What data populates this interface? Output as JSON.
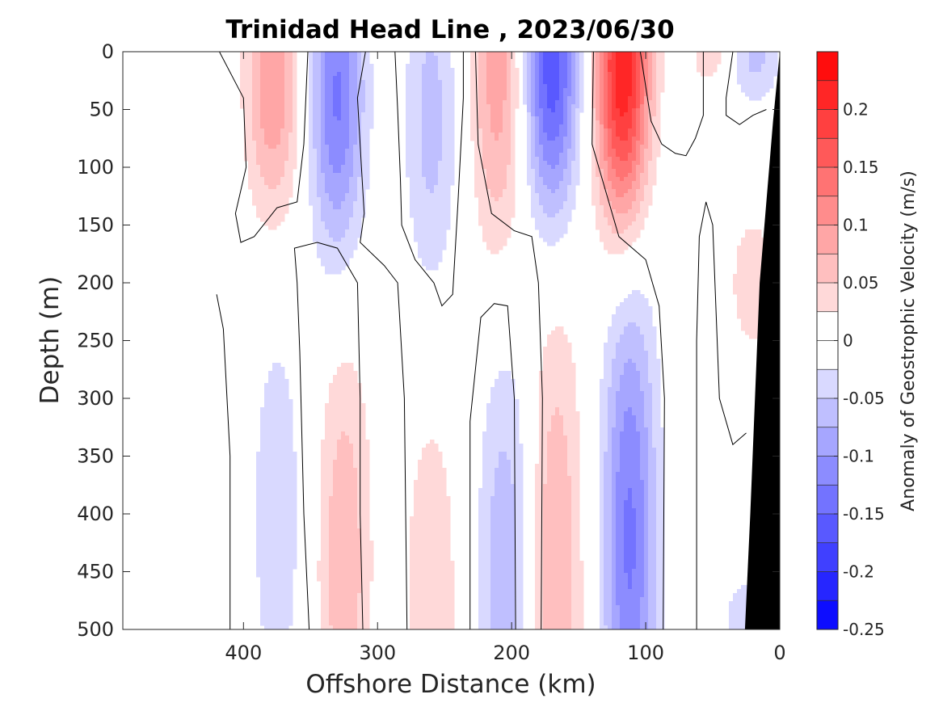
{
  "chart_data": {
    "type": "heatmap",
    "title": "Trinidad Head Line , 2023/06/30",
    "xlabel": "Offshore Distance (km)",
    "ylabel": "Depth (m)",
    "xlim": [
      490,
      0
    ],
    "ylim": [
      0,
      500
    ],
    "x_direction": "reversed",
    "y_direction": "down",
    "xticks": [
      400,
      300,
      200,
      100,
      0
    ],
    "yticks": [
      0,
      50,
      100,
      150,
      200,
      250,
      300,
      350,
      400,
      450,
      500
    ],
    "colorbar": {
      "label": "Anomaly of Geostrophic Velocity (m/s)",
      "range": [
        -0.25,
        0.25
      ],
      "levels": [
        -0.25,
        -0.225,
        -0.2,
        -0.175,
        -0.15,
        -0.125,
        -0.1,
        -0.075,
        -0.05,
        -0.025,
        0,
        0.025,
        0.05,
        0.075,
        0.1,
        0.125,
        0.15,
        0.175,
        0.2,
        0.225,
        0.25
      ],
      "ticks": [
        -0.25,
        -0.2,
        -0.15,
        -0.1,
        -0.05,
        0,
        0.05,
        0.1,
        0.15,
        0.2
      ],
      "tick_labels": [
        "-0.25",
        "-0.2",
        "-0.15",
        "-0.1",
        "-0.05",
        "0",
        "0.05",
        "0.1",
        "0.15",
        "0.2"
      ],
      "negative_color": "#0000ff",
      "positive_color": "#ff0000",
      "neutral_color": "#ffffff"
    },
    "features": [
      {
        "x": 378,
        "depth": 25,
        "peak": 0.1,
        "depth_extent": 120
      },
      {
        "x": 330,
        "depth": 40,
        "peak": -0.13,
        "depth_extent": 140
      },
      {
        "x": 260,
        "depth": 60,
        "peak": -0.06,
        "depth_extent": 150
      },
      {
        "x": 210,
        "depth": 20,
        "peak": 0.09,
        "depth_extent": 160
      },
      {
        "x": 170,
        "depth": 15,
        "peak": -0.17,
        "depth_extent": 130
      },
      {
        "x": 117,
        "depth": 15,
        "peak": 0.23,
        "depth_extent": 140
      },
      {
        "x": 50,
        "depth": 5,
        "peak": 0.04,
        "depth_extent": 30
      },
      {
        "x": 20,
        "depth": 5,
        "peak": -0.06,
        "depth_extent": 40
      },
      {
        "x": 20,
        "depth": 200,
        "peak": 0.04,
        "depth_extent": 70
      },
      {
        "x": 375,
        "depth": 400,
        "peak": -0.045,
        "depth_extent": 180
      },
      {
        "x": 325,
        "depth": 440,
        "peak": 0.07,
        "depth_extent": 200
      },
      {
        "x": 260,
        "depth": 470,
        "peak": 0.05,
        "depth_extent": 170
      },
      {
        "x": 205,
        "depth": 450,
        "peak": -0.07,
        "depth_extent": 200
      },
      {
        "x": 167,
        "depth": 460,
        "peak": 0.075,
        "depth_extent": 250
      },
      {
        "x": 112,
        "depth": 420,
        "peak": -0.13,
        "depth_extent": 230
      },
      {
        "x": 25,
        "depth": 490,
        "peak": -0.04,
        "depth_extent": 40
      }
    ],
    "bathymetry_mask": [
      [
        0,
        0
      ],
      [
        5,
        60
      ],
      [
        15,
        200
      ],
      [
        22,
        400
      ],
      [
        26,
        500
      ],
      [
        0,
        500
      ]
    ],
    "zero_contours": [
      [
        [
          418,
          0
        ],
        [
          400,
          40
        ],
        [
          398,
          100
        ],
        [
          406,
          140
        ],
        [
          402,
          165
        ],
        [
          392,
          160
        ],
        [
          375,
          135
        ],
        [
          360,
          130
        ],
        [
          355,
          80
        ],
        [
          352,
          0
        ]
      ],
      [
        [
          420,
          210
        ],
        [
          415,
          240
        ],
        [
          410,
          350
        ],
        [
          410,
          500
        ]
      ],
      [
        [
          351,
          500
        ],
        [
          355,
          400
        ],
        [
          358,
          260
        ],
        [
          360,
          200
        ],
        [
          362,
          170
        ],
        [
          345,
          165
        ],
        [
          330,
          170
        ],
        [
          315,
          200
        ],
        [
          313,
          300
        ],
        [
          313,
          400
        ],
        [
          311,
          500
        ]
      ],
      [
        [
          309,
          0
        ],
        [
          315,
          40
        ],
        [
          312,
          100
        ],
        [
          310,
          140
        ],
        [
          313,
          165
        ],
        [
          295,
          185
        ],
        [
          285,
          200
        ],
        [
          280,
          300
        ],
        [
          278,
          500
        ]
      ],
      [
        [
          287,
          0
        ],
        [
          285,
          50
        ],
        [
          283,
          110
        ],
        [
          282,
          150
        ],
        [
          272,
          180
        ],
        [
          258,
          200
        ],
        [
          252,
          220
        ],
        [
          244,
          210
        ],
        [
          240,
          130
        ],
        [
          236,
          40
        ],
        [
          236,
          0
        ]
      ],
      [
        [
          231,
          500
        ],
        [
          231,
          320
        ],
        [
          223,
          230
        ],
        [
          213,
          218
        ],
        [
          203,
          220
        ],
        [
          198,
          300
        ],
        [
          197,
          500
        ]
      ],
      [
        [
          227,
          0
        ],
        [
          225,
          80
        ],
        [
          215,
          140
        ],
        [
          198,
          155
        ],
        [
          185,
          160
        ],
        [
          180,
          200
        ],
        [
          177,
          300
        ],
        [
          178,
          500
        ]
      ],
      [
        [
          139,
          0
        ],
        [
          140,
          80
        ],
        [
          130,
          120
        ],
        [
          120,
          160
        ],
        [
          100,
          180
        ],
        [
          90,
          220
        ],
        [
          86,
          300
        ],
        [
          87,
          500
        ]
      ],
      [
        [
          104,
          0
        ],
        [
          96,
          60
        ],
        [
          88,
          80
        ],
        [
          78,
          88
        ],
        [
          70,
          90
        ],
        [
          63,
          75
        ],
        [
          57,
          55
        ],
        [
          57,
          0
        ]
      ],
      [
        [
          35,
          0
        ],
        [
          40,
          40
        ],
        [
          40,
          55
        ],
        [
          30,
          63
        ],
        [
          20,
          55
        ],
        [
          10,
          50
        ]
      ],
      [
        [
          62,
          500
        ],
        [
          62,
          400
        ],
        [
          62,
          250
        ],
        [
          60,
          160
        ],
        [
          55,
          130
        ],
        [
          50,
          150
        ],
        [
          45,
          300
        ],
        [
          35,
          340
        ],
        [
          25,
          330
        ]
      ]
    ]
  }
}
